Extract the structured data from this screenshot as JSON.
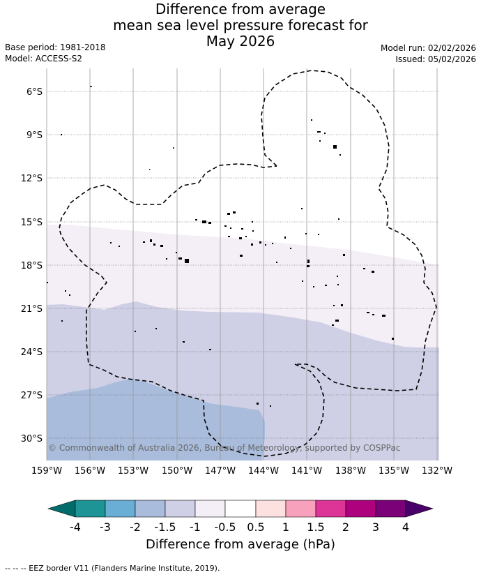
{
  "title": {
    "line1": "Difference from average",
    "line2": "mean sea level pressure forecast for",
    "line3": "May 2026"
  },
  "meta": {
    "base_period": "Base period: 1981-2018",
    "model": "Model: ACCESS-S2",
    "model_run": "Model run: 02/02/2026",
    "issued": "Issued: 05/02/2026"
  },
  "map": {
    "lat_labels": [
      "6°S",
      "9°S",
      "12°S",
      "15°S",
      "18°S",
      "21°S",
      "24°S",
      "27°S",
      "30°S"
    ],
    "lon_labels": [
      "159°W",
      "156°W",
      "153°W",
      "150°W",
      "147°W",
      "144°W",
      "141°W",
      "138°W",
      "135°W",
      "132°W"
    ],
    "copyright": "© Commonwealth of Australia 2026, Bureau of Meteorology, supported by COSPPac",
    "colors": {
      "pale_lavender": "#f4eef6",
      "lavender": "#cfd0e6",
      "light_blue": "#a9bcdb",
      "gridline": "#555555"
    }
  },
  "colorbar": {
    "title": "Difference from average (hPa)",
    "tick_labels": [
      "-4",
      "-3",
      "-2",
      "-1.5",
      "-1",
      "-0.5",
      "0.5",
      "1",
      "1.5",
      "2",
      "3",
      "4"
    ],
    "colors": [
      "#006d6b",
      "#1f9496",
      "#6aaed6",
      "#a9bcdb",
      "#cfd0e6",
      "#f4eef6",
      "#ffffff",
      "#fde0e0",
      "#f7a1bc",
      "#dd3497",
      "#ae017e",
      "#7a0177",
      "#49006a"
    ]
  },
  "footnote": "--  --  -- EEZ border V11 (Flanders Marine Institute, 2019)."
}
